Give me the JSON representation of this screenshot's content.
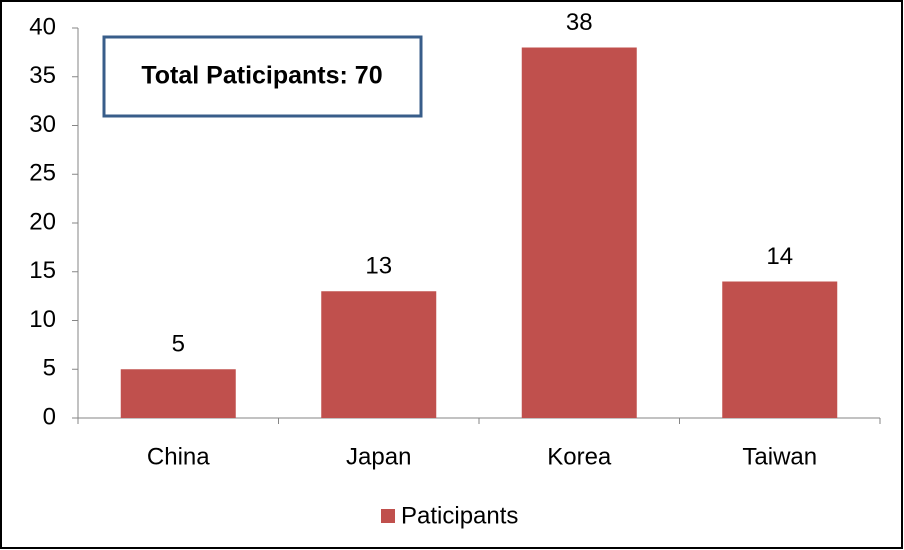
{
  "chart_data": {
    "type": "bar",
    "annotation": "Total Paticipants: 70",
    "categories": [
      "China",
      "Japan",
      "Korea",
      "Taiwan"
    ],
    "series": [
      {
        "name": "Paticipants",
        "color": "#c0504d",
        "values": [
          5,
          13,
          38,
          14
        ]
      }
    ],
    "ylim": [
      0,
      40
    ],
    "yticks": [
      0,
      5,
      10,
      15,
      20,
      25,
      30,
      35,
      40
    ],
    "grid": false,
    "legend": "bottom"
  }
}
